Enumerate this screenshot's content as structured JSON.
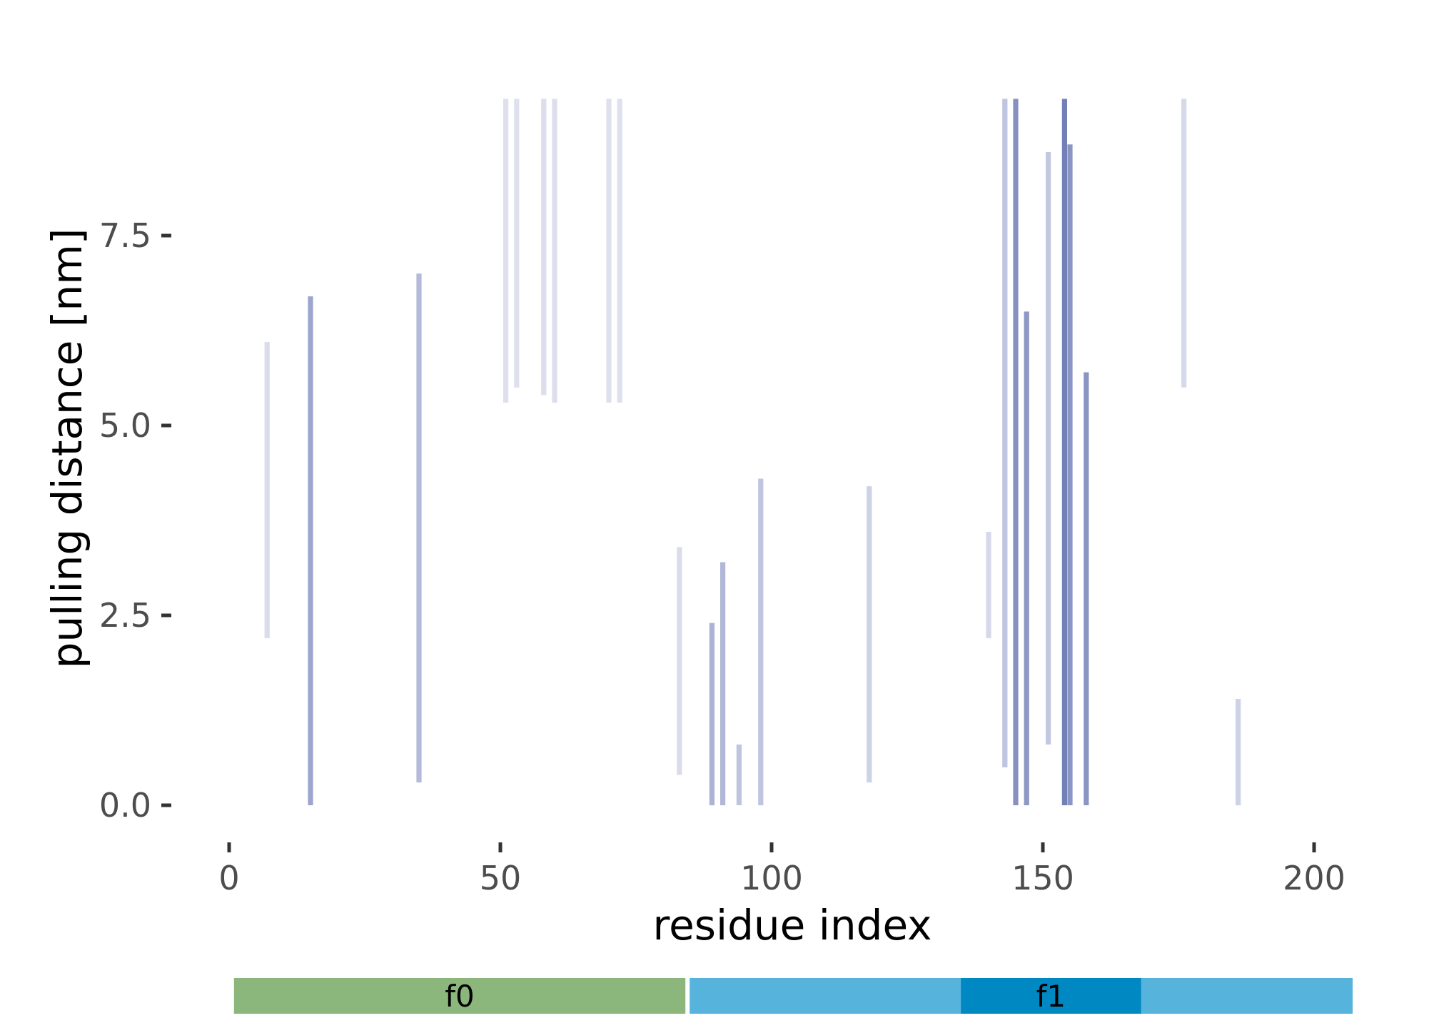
{
  "chart_data": {
    "type": "heatmap",
    "xlabel": "residue index",
    "ylabel": "pulling distance [nm]",
    "xlim": [
      -3,
      208
    ],
    "ylim": [
      -0.6,
      9.4
    ],
    "x_ticks": [
      {
        "value": 0,
        "label": "0"
      },
      {
        "value": 50,
        "label": "50"
      },
      {
        "value": 100,
        "label": "100"
      },
      {
        "value": 150,
        "label": "150"
      },
      {
        "value": 200,
        "label": "200"
      }
    ],
    "y_ticks": [
      {
        "value": 0.0,
        "label": "0.0"
      },
      {
        "value": 2.5,
        "label": "2.5"
      },
      {
        "value": 5.0,
        "label": "5.0"
      },
      {
        "value": 7.5,
        "label": "7.5"
      }
    ],
    "colors": {
      "low": "#e9eaf4",
      "high": "#2b3f93",
      "tick": "#333333",
      "text": "#4d4d4d"
    },
    "intensity_scale": [
      0,
      1
    ],
    "contact_bands": [
      {
        "residue": 7,
        "y_start": 2.2,
        "y_end": 6.1,
        "intensity": 0.08
      },
      {
        "residue": 15,
        "y_start": 0.0,
        "y_end": 6.7,
        "intensity": 0.4
      },
      {
        "residue": 35,
        "y_start": 0.3,
        "y_end": 7.0,
        "intensity": 0.28
      },
      {
        "residue": 51,
        "y_start": 5.3,
        "y_end": 9.3,
        "intensity": 0.06
      },
      {
        "residue": 53,
        "y_start": 5.5,
        "y_end": 9.3,
        "intensity": 0.06
      },
      {
        "residue": 58,
        "y_start": 5.4,
        "y_end": 9.3,
        "intensity": 0.07
      },
      {
        "residue": 60,
        "y_start": 5.3,
        "y_end": 9.3,
        "intensity": 0.07
      },
      {
        "residue": 70,
        "y_start": 5.3,
        "y_end": 9.3,
        "intensity": 0.06
      },
      {
        "residue": 72,
        "y_start": 5.3,
        "y_end": 9.3,
        "intensity": 0.06
      },
      {
        "residue": 83,
        "y_start": 0.4,
        "y_end": 3.4,
        "intensity": 0.08
      },
      {
        "residue": 89,
        "y_start": 0.0,
        "y_end": 2.4,
        "intensity": 0.32
      },
      {
        "residue": 91,
        "y_start": 0.0,
        "y_end": 3.2,
        "intensity": 0.3
      },
      {
        "residue": 94,
        "y_start": 0.0,
        "y_end": 0.8,
        "intensity": 0.22
      },
      {
        "residue": 98,
        "y_start": 0.0,
        "y_end": 4.3,
        "intensity": 0.22
      },
      {
        "residue": 118,
        "y_start": 0.3,
        "y_end": 4.2,
        "intensity": 0.14
      },
      {
        "residue": 140,
        "y_start": 2.2,
        "y_end": 3.6,
        "intensity": 0.1
      },
      {
        "residue": 143,
        "y_start": 0.5,
        "y_end": 9.3,
        "intensity": 0.22
      },
      {
        "residue": 145,
        "y_start": 0.0,
        "y_end": 9.3,
        "intensity": 0.52
      },
      {
        "residue": 147,
        "y_start": 0.0,
        "y_end": 6.5,
        "intensity": 0.48
      },
      {
        "residue": 151,
        "y_start": 0.8,
        "y_end": 8.6,
        "intensity": 0.2
      },
      {
        "residue": 154,
        "y_start": 0.0,
        "y_end": 9.3,
        "intensity": 0.62
      },
      {
        "residue": 155,
        "y_start": 0.0,
        "y_end": 8.7,
        "intensity": 0.5
      },
      {
        "residue": 158,
        "y_start": 0.0,
        "y_end": 5.7,
        "intensity": 0.5
      },
      {
        "residue": 176,
        "y_start": 5.5,
        "y_end": 9.3,
        "intensity": 0.1
      },
      {
        "residue": 186,
        "y_start": 0.0,
        "y_end": 1.4,
        "intensity": 0.14
      }
    ],
    "domains": [
      {
        "label": "f0",
        "start": 1,
        "end": 84,
        "color": "#8bb77c"
      },
      {
        "label": "",
        "start": 85,
        "end": 207,
        "color": "#56b4dc"
      },
      {
        "label": "f1",
        "start": 135,
        "end": 168,
        "color": "#0088c2"
      }
    ]
  }
}
